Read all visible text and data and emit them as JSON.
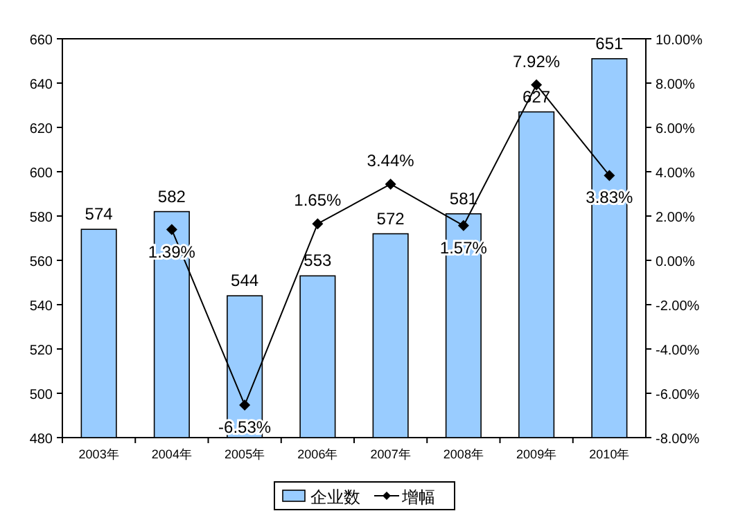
{
  "chart_data": {
    "type": "bar",
    "categories": [
      "2003年",
      "2004年",
      "2005年",
      "2006年",
      "2007年",
      "2008年",
      "2009年",
      "2010年"
    ],
    "series": [
      {
        "name": "企业数",
        "color": "#99ccff",
        "values": [
          574,
          582,
          544,
          553,
          572,
          581,
          627,
          651
        ],
        "value_labels": [
          "574",
          "582",
          "544",
          "553",
          "572",
          "581",
          "627",
          "651"
        ]
      },
      {
        "name": "增幅",
        "type": "line",
        "axis": "y2",
        "color": "#000000",
        "marker": "diamond",
        "values": [
          null,
          1.39,
          -6.53,
          1.65,
          3.44,
          1.57,
          7.92,
          3.83
        ],
        "value_labels": [
          null,
          "1.39%",
          "-6.53%",
          "1.65%",
          "3.44%",
          "1.57%",
          "7.92%",
          "3.83%"
        ]
      }
    ],
    "ylim": [
      480,
      660
    ],
    "yticks": [
      480,
      500,
      520,
      540,
      560,
      580,
      600,
      620,
      640,
      660
    ],
    "y2lim": [
      -8,
      10
    ],
    "y2ticks": [
      {
        "value": -8,
        "label": "-8.00%"
      },
      {
        "value": -6,
        "label": "-6.00%"
      },
      {
        "value": -4,
        "label": "-4.00%"
      },
      {
        "value": -2,
        "label": "-2.00%"
      },
      {
        "value": 0,
        "label": "0.00%"
      },
      {
        "value": 2,
        "label": "2.00%"
      },
      {
        "value": 4,
        "label": "4.00%"
      },
      {
        "value": 6,
        "label": "6.00%"
      },
      {
        "value": 8,
        "label": "8.00%"
      },
      {
        "value": 10,
        "label": "10.00%"
      }
    ],
    "grid": false,
    "legend": "bottom"
  }
}
